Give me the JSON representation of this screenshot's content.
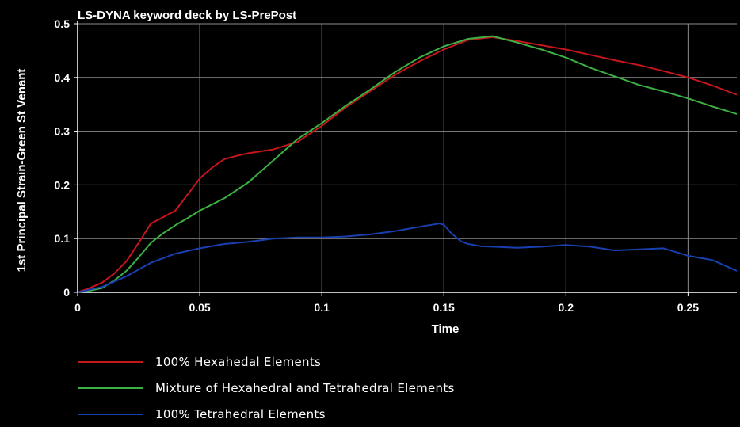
{
  "chart_data": {
    "type": "line",
    "title": "LS-DYNA keyword deck by LS-PrePost",
    "xlabel": "Time",
    "ylabel": "1st Principal Strain-Green St Venant",
    "xlim": [
      0,
      0.27
    ],
    "ylim": [
      0,
      0.5
    ],
    "xticks": [
      0,
      0.05,
      0.1,
      0.15,
      0.2,
      0.25
    ],
    "xtick_labels": [
      "0",
      "0.05",
      "0.1",
      "0.15",
      "0.2",
      "0.25"
    ],
    "yticks": [
      0,
      0.1,
      0.2,
      0.3,
      0.4,
      0.5
    ],
    "ytick_labels": [
      "0",
      "0.1",
      "0.2",
      "0.3",
      "0.4",
      "0.5"
    ],
    "grid": true,
    "legend_position": "bottom",
    "colors": {
      "background": "#000000",
      "axes": "#ffffff",
      "grid": "#8a8a8a"
    },
    "series": [
      {
        "name": "100% Hexahedal Elements",
        "color": "#c4161c",
        "points": [
          [
            0,
            0
          ],
          [
            0.005,
            0.008
          ],
          [
            0.01,
            0.018
          ],
          [
            0.015,
            0.035
          ],
          [
            0.02,
            0.058
          ],
          [
            0.025,
            0.092
          ],
          [
            0.03,
            0.128
          ],
          [
            0.035,
            0.14
          ],
          [
            0.04,
            0.152
          ],
          [
            0.045,
            0.182
          ],
          [
            0.05,
            0.212
          ],
          [
            0.055,
            0.232
          ],
          [
            0.06,
            0.248
          ],
          [
            0.065,
            0.254
          ],
          [
            0.07,
            0.259
          ],
          [
            0.08,
            0.266
          ],
          [
            0.09,
            0.28
          ],
          [
            0.1,
            0.31
          ],
          [
            0.11,
            0.345
          ],
          [
            0.12,
            0.375
          ],
          [
            0.13,
            0.405
          ],
          [
            0.14,
            0.43
          ],
          [
            0.15,
            0.452
          ],
          [
            0.16,
            0.47
          ],
          [
            0.17,
            0.475
          ],
          [
            0.18,
            0.468
          ],
          [
            0.19,
            0.46
          ],
          [
            0.2,
            0.452
          ],
          [
            0.21,
            0.442
          ],
          [
            0.22,
            0.432
          ],
          [
            0.23,
            0.423
          ],
          [
            0.24,
            0.412
          ],
          [
            0.25,
            0.4
          ],
          [
            0.26,
            0.385
          ],
          [
            0.27,
            0.368
          ]
        ]
      },
      {
        "name": "Mixture of Hexahedral and Tetrahedral Elements",
        "color": "#3cb043",
        "points": [
          [
            0,
            0
          ],
          [
            0.005,
            0.003
          ],
          [
            0.01,
            0.008
          ],
          [
            0.015,
            0.022
          ],
          [
            0.02,
            0.04
          ],
          [
            0.025,
            0.065
          ],
          [
            0.03,
            0.092
          ],
          [
            0.035,
            0.11
          ],
          [
            0.04,
            0.125
          ],
          [
            0.045,
            0.138
          ],
          [
            0.05,
            0.152
          ],
          [
            0.06,
            0.175
          ],
          [
            0.07,
            0.205
          ],
          [
            0.08,
            0.245
          ],
          [
            0.09,
            0.285
          ],
          [
            0.1,
            0.315
          ],
          [
            0.11,
            0.348
          ],
          [
            0.12,
            0.378
          ],
          [
            0.13,
            0.41
          ],
          [
            0.14,
            0.437
          ],
          [
            0.15,
            0.458
          ],
          [
            0.16,
            0.472
          ],
          [
            0.17,
            0.477
          ],
          [
            0.18,
            0.465
          ],
          [
            0.19,
            0.452
          ],
          [
            0.2,
            0.437
          ],
          [
            0.21,
            0.418
          ],
          [
            0.22,
            0.402
          ],
          [
            0.23,
            0.386
          ],
          [
            0.24,
            0.374
          ],
          [
            0.25,
            0.361
          ],
          [
            0.26,
            0.346
          ],
          [
            0.27,
            0.332
          ]
        ]
      },
      {
        "name": "100% Tetrahedral Elements",
        "color": "#1a3fb0",
        "points": [
          [
            0,
            0
          ],
          [
            0.01,
            0.01
          ],
          [
            0.02,
            0.03
          ],
          [
            0.03,
            0.055
          ],
          [
            0.04,
            0.072
          ],
          [
            0.05,
            0.082
          ],
          [
            0.06,
            0.09
          ],
          [
            0.07,
            0.094
          ],
          [
            0.08,
            0.1
          ],
          [
            0.09,
            0.102
          ],
          [
            0.1,
            0.102
          ],
          [
            0.11,
            0.104
          ],
          [
            0.12,
            0.108
          ],
          [
            0.13,
            0.114
          ],
          [
            0.14,
            0.122
          ],
          [
            0.148,
            0.128
          ],
          [
            0.15,
            0.126
          ],
          [
            0.153,
            0.11
          ],
          [
            0.157,
            0.095
          ],
          [
            0.16,
            0.09
          ],
          [
            0.165,
            0.086
          ],
          [
            0.17,
            0.085
          ],
          [
            0.18,
            0.083
          ],
          [
            0.19,
            0.085
          ],
          [
            0.2,
            0.088
          ],
          [
            0.21,
            0.085
          ],
          [
            0.22,
            0.078
          ],
          [
            0.23,
            0.08
          ],
          [
            0.24,
            0.082
          ],
          [
            0.25,
            0.068
          ],
          [
            0.26,
            0.06
          ],
          [
            0.27,
            0.04
          ]
        ]
      }
    ]
  }
}
